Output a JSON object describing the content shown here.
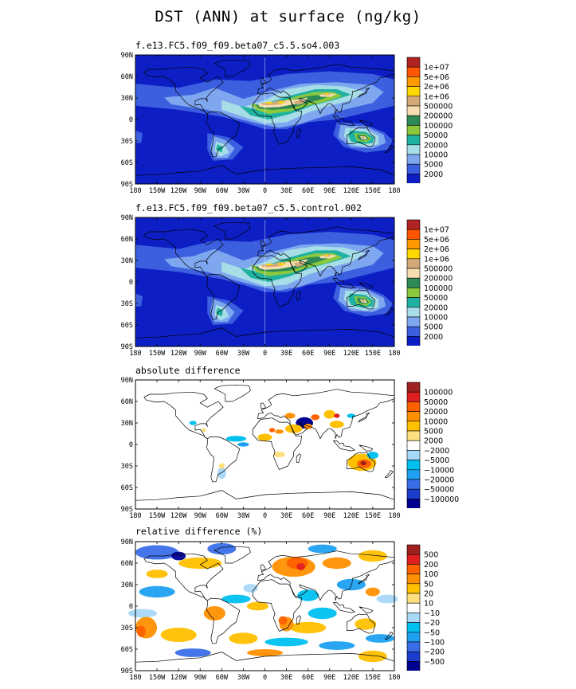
{
  "title": "DST (ANN) at surface (ng/kg)",
  "lat_labels": [
    "90N",
    "60N",
    "30N",
    "0",
    "30S",
    "60S",
    "90S"
  ],
  "lon_labels": [
    "180",
    "150W",
    "120W",
    "90W",
    "60W",
    "30W",
    "0",
    "30E",
    "60E",
    "90E",
    "120E",
    "150E",
    "180"
  ],
  "colors": {
    "conc": [
      "#0d1fc4",
      "#3c5fe0",
      "#7fa7f0",
      "#a7dde6",
      "#20b2a0",
      "#8cc83c",
      "#2e8b57",
      "#f6deb0",
      "#d4a97a",
      "#ffd700",
      "#ff9900",
      "#ff5500",
      "#b22222"
    ],
    "diff": [
      "#000090",
      "#1a3dcc",
      "#3a6ee8",
      "#1ea0f0",
      "#00c0f0",
      "#a8d8f8",
      "#ffffff",
      "#ffe080",
      "#ffc000",
      "#ff9000",
      "#ff6000",
      "#e02020",
      "#a02020"
    ]
  },
  "chart_data": [
    {
      "type": "heatmap",
      "title": "f.e13.FC5.f09_f09.beta07_c5.5.so4.003",
      "xlabel": "",
      "ylabel": "",
      "xlim": [
        -180,
        180
      ],
      "ylim": [
        -90,
        90
      ],
      "legend_labels": [
        "1e+07",
        "5e+06",
        "2e+06",
        "1e+06",
        "500000",
        "200000",
        "100000",
        "50000",
        "20000",
        "10000",
        "5000",
        "2000"
      ],
      "scale": "conc"
    },
    {
      "type": "heatmap",
      "title": "f.e13.FC5.f09_f09.beta07_c5.5.control.002",
      "xlabel": "",
      "ylabel": "",
      "xlim": [
        -180,
        180
      ],
      "ylim": [
        -90,
        90
      ],
      "legend_labels": [
        "1e+07",
        "5e+06",
        "2e+06",
        "1e+06",
        "500000",
        "200000",
        "100000",
        "50000",
        "20000",
        "10000",
        "5000",
        "2000"
      ],
      "scale": "conc"
    },
    {
      "type": "heatmap",
      "title": "absolute difference",
      "xlabel": "",
      "ylabel": "",
      "xlim": [
        -180,
        180
      ],
      "ylim": [
        -90,
        90
      ],
      "legend_labels": [
        "100000",
        "50000",
        "20000",
        "10000",
        "5000",
        "2000",
        "−2000",
        "−5000",
        "−10000",
        "−20000",
        "−50000",
        "−100000"
      ],
      "scale": "diff"
    },
    {
      "type": "heatmap",
      "title": "relative difference (%)",
      "xlabel": "",
      "ylabel": "",
      "xlim": [
        -180,
        180
      ],
      "ylim": [
        -90,
        90
      ],
      "legend_labels": [
        "500",
        "200",
        "100",
        "50",
        "20",
        "10",
        "−10",
        "−20",
        "−50",
        "−100",
        "−200",
        "−500"
      ],
      "scale": "diff"
    }
  ]
}
